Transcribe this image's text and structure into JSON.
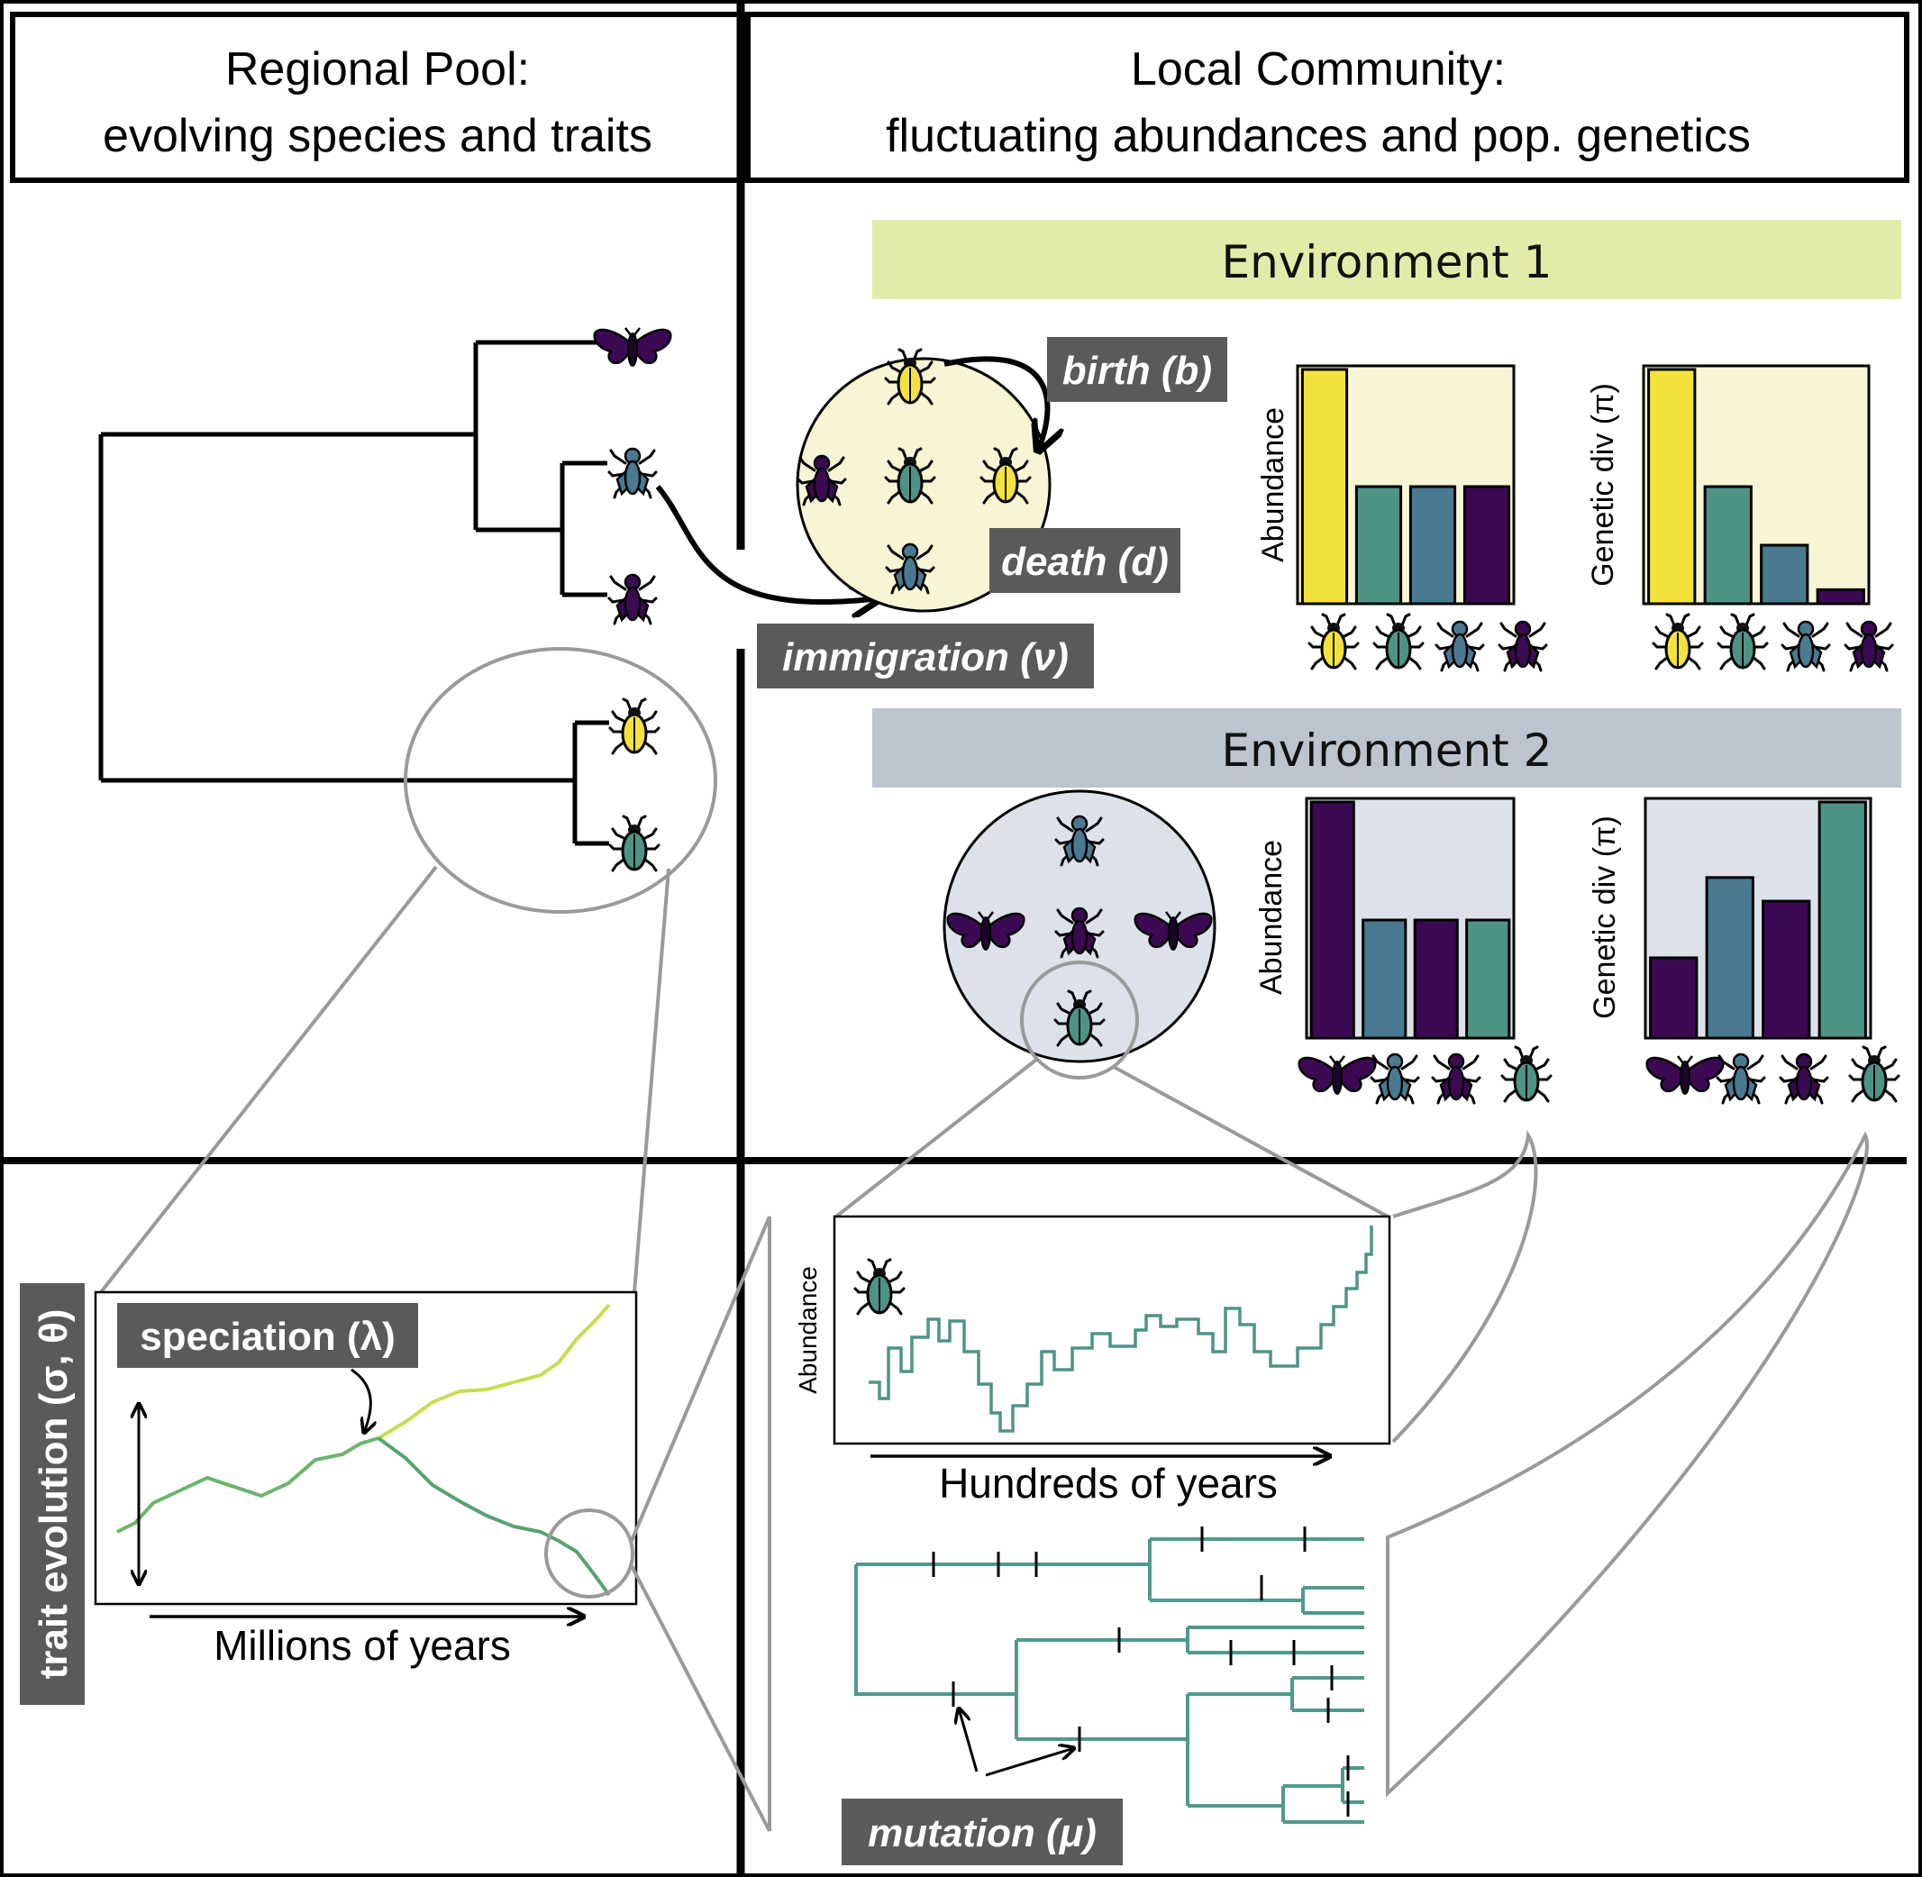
{
  "headers": {
    "regional_line1": "Regional Pool:",
    "regional_line2": "evolving species and traits",
    "local_line1": "Local Community:",
    "local_line2": "fluctuating abundances and pop. genetics"
  },
  "environments": {
    "env1": "Environment 1",
    "env2": "Environment 2"
  },
  "labels": {
    "birth": "birth (b)",
    "death": "death (d)",
    "immigration": "immigration (ν)",
    "speciation": "speciation (λ)",
    "trait_evolution": "trait evolution (σ, θ)",
    "mutation": "mutation (μ)",
    "abundance": "Abundance",
    "genetic_div": "Genetic div (π)",
    "millions_of_years": "Millions of years",
    "hundreds_of_years": "Hundreds of years"
  },
  "colors": {
    "yellow": "#f4e23c",
    "green": "#4e9486",
    "blue": "#4a7a91",
    "purple": "#3b0a52",
    "env1_bg": "#e3eba8",
    "env2_bg": "#bcc4cf",
    "label_bg": "#5a5a5a",
    "zoom_line": "#9a9a9a"
  },
  "icons": [
    "beetle-icon",
    "fly-icon",
    "moth-icon"
  ],
  "chart_data": [
    {
      "type": "bar",
      "panel": "Environment 1 abundance",
      "ylabel": "Abundance",
      "categories": [
        "yellow beetle",
        "green beetle",
        "blue fly",
        "purple fly"
      ],
      "values": [
        1.0,
        0.5,
        0.5,
        0.5
      ],
      "ylim": [
        0,
        1
      ]
    },
    {
      "type": "bar",
      "panel": "Environment 1 genetic diversity",
      "ylabel": "Genetic div (π)",
      "categories": [
        "yellow beetle",
        "green beetle",
        "blue fly",
        "purple fly"
      ],
      "values": [
        1.0,
        0.5,
        0.25,
        0.06
      ],
      "ylim": [
        0,
        1
      ]
    },
    {
      "type": "bar",
      "panel": "Environment 2 abundance",
      "ylabel": "Abundance",
      "categories": [
        "purple moth",
        "blue fly",
        "purple fly",
        "green beetle"
      ],
      "values": [
        1.0,
        0.5,
        0.5,
        0.5
      ],
      "ylim": [
        0,
        1
      ]
    },
    {
      "type": "bar",
      "panel": "Environment 2 genetic diversity",
      "ylabel": "Genetic div (π)",
      "categories": [
        "purple moth",
        "blue fly",
        "purple fly",
        "green beetle"
      ],
      "values": [
        0.34,
        0.68,
        0.58,
        1.0
      ],
      "ylim": [
        0,
        1
      ]
    }
  ]
}
